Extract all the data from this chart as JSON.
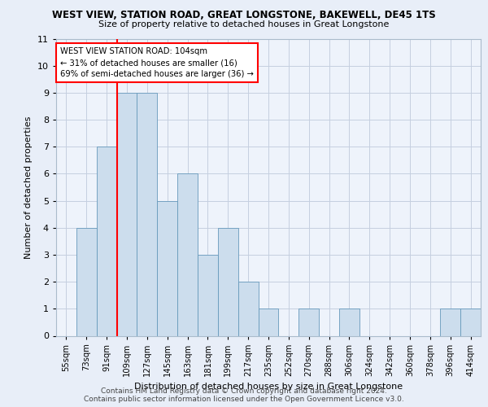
{
  "title": "WEST VIEW, STATION ROAD, GREAT LONGSTONE, BAKEWELL, DE45 1TS",
  "subtitle": "Size of property relative to detached houses in Great Longstone",
  "xlabel": "Distribution of detached houses by size in Great Longstone",
  "ylabel": "Number of detached properties",
  "categories": [
    "55sqm",
    "73sqm",
    "91sqm",
    "109sqm",
    "127sqm",
    "145sqm",
    "163sqm",
    "181sqm",
    "199sqm",
    "217sqm",
    "235sqm",
    "252sqm",
    "270sqm",
    "288sqm",
    "306sqm",
    "324sqm",
    "342sqm",
    "360sqm",
    "378sqm",
    "396sqm",
    "414sqm"
  ],
  "values": [
    0,
    4,
    7,
    9,
    9,
    5,
    6,
    3,
    4,
    2,
    1,
    0,
    1,
    0,
    1,
    0,
    0,
    0,
    0,
    1,
    1
  ],
  "bar_color": "#ccdded",
  "bar_edge_color": "#6699bb",
  "vline_color": "red",
  "annotation_line1": "WEST VIEW STATION ROAD: 104sqm",
  "annotation_line2": "← 31% of detached houses are smaller (16)",
  "annotation_line3": "69% of semi-detached houses are larger (36) →",
  "annotation_box_color": "white",
  "annotation_box_edge": "red",
  "ylim": [
    0,
    11
  ],
  "yticks": [
    0,
    1,
    2,
    3,
    4,
    5,
    6,
    7,
    8,
    9,
    10,
    11
  ],
  "footer1": "Contains HM Land Registry data © Crown copyright and database right 2024.",
  "footer2": "Contains public sector information licensed under the Open Government Licence v3.0.",
  "bg_color": "#e8eef8",
  "plot_bg_color": "#eef3fb",
  "grid_color": "#c5cfe0"
}
